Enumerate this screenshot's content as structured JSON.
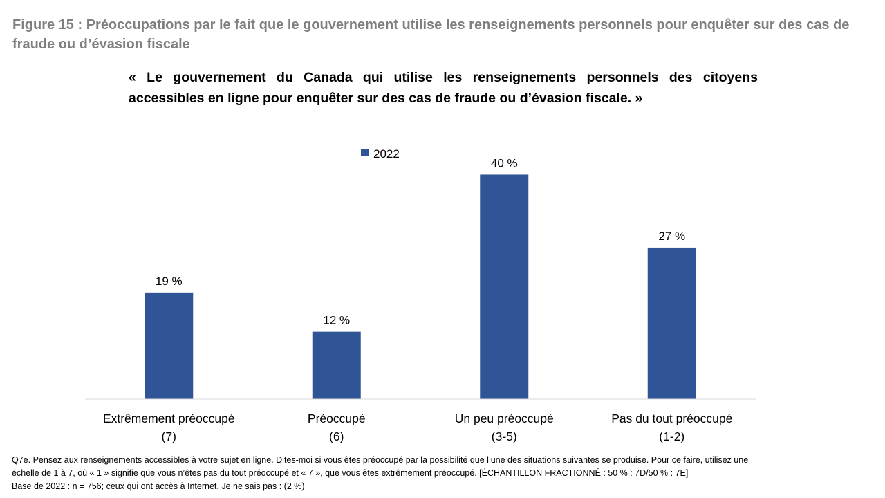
{
  "figure_title": "Figure 15 : Préoccupations par le fait que le gouvernement utilise les renseignements personnels pour enquêter sur des cas de fraude ou d’évasion fiscale",
  "chart_data": {
    "type": "bar",
    "title": "« Le gouvernement du Canada qui utilise les renseignements personnels des citoyens accessibles en ligne pour enquêter sur des cas de fraude ou d’évasion fiscale. »",
    "categories": [
      [
        "Extrêmement préoccupé",
        "(7)"
      ],
      [
        "Préoccupé",
        "(6)"
      ],
      [
        "Un peu préoccupé",
        "(3-5)"
      ],
      [
        "Pas du tout préoccupé",
        "(1-2)"
      ]
    ],
    "series": [
      {
        "name": "2022",
        "color": "#2f5597",
        "values": [
          19,
          12,
          40,
          27
        ],
        "labels": [
          "19 %",
          "12 %",
          "40 %",
          "27 %"
        ]
      }
    ],
    "xlabel": "",
    "ylabel": "",
    "ylim": [
      0,
      44
    ],
    "grid": false,
    "legend": "top-center"
  },
  "footnote": {
    "line1": "Q7e. Pensez aux renseignements accessibles à votre sujet en ligne. Dites-moi si vous êtes préoccupé par la possibilité que l’une des situations suivantes se produise. Pour ce faire, utilisez une",
    "line2": "échelle de 1 à 7, où « 1 » signifie que vous n’êtes pas du tout préoccupé et « 7 », que vous êtes extrêmement  préoccupé. [ÉCHANTILLON FRACTIONNÉ : 50 % : 7D/50 % : 7E]",
    "line3": "Base de 2022 : n = 756; ceux qui ont accès à Internet. Je ne sais pas : (2 %)"
  }
}
